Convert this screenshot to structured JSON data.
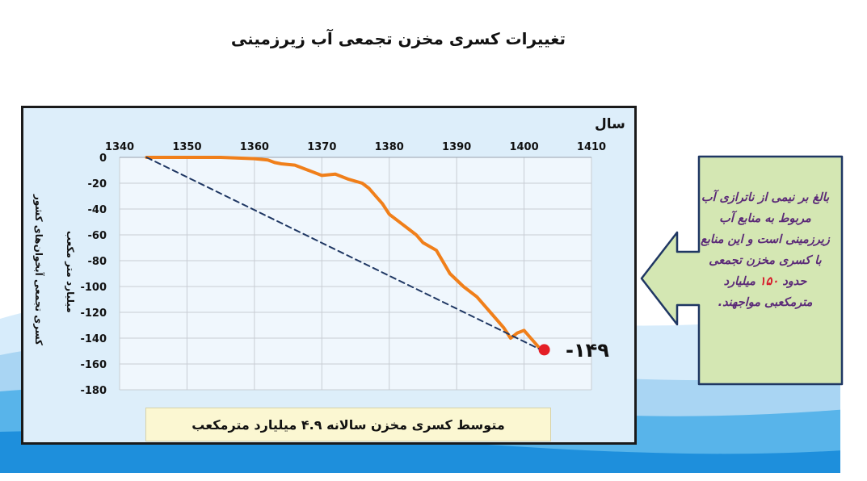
{
  "title": "تغییرات کسری مخزن تجمعی آب زیرزمینی",
  "chart_data": {
    "type": "line",
    "xlabel": "سال",
    "ylabel": "کسری تجمعی آبخوان‌های کشور",
    "ylabel_unit": "میلیارد متر مکعب",
    "x_axis_position": "top",
    "xlim": [
      1340,
      1410
    ],
    "ylim": [
      -180,
      0
    ],
    "x_ticks": [
      "1340",
      "1350",
      "1360",
      "1370",
      "1380",
      "1390",
      "1400",
      "1410"
    ],
    "y_ticks": [
      "0",
      "-20",
      "-40",
      "-60",
      "-80",
      "-100",
      "-120",
      "-140",
      "-160",
      "-180"
    ],
    "grid": true,
    "series": [
      {
        "style": "solid",
        "color": "#f07f1a",
        "x": [
          1344,
          1350,
          1355,
          1360,
          1362,
          1363,
          1364,
          1366,
          1368,
          1370,
          1372,
          1374,
          1376,
          1377,
          1378,
          1379,
          1380,
          1382,
          1384,
          1385,
          1387,
          1389,
          1391,
          1393,
          1395,
          1396,
          1397,
          1398,
          1399,
          1400,
          1401,
          1402,
          1402.5
        ],
        "y": [
          0,
          0,
          0,
          -1,
          -2,
          -4,
          -5,
          -6,
          -10,
          -14,
          -13,
          -17,
          -20,
          -24,
          -30,
          -36,
          -44,
          -52,
          -60,
          -66,
          -72,
          -90,
          -100,
          -108,
          -120,
          -126,
          -132,
          -140,
          -136,
          -134,
          -140,
          -146,
          -149
        ]
      },
      {
        "style": "dashed",
        "color": "#1f3763",
        "x": [
          1344,
          1402.5
        ],
        "y": [
          0,
          -149
        ]
      }
    ],
    "end_point": {
      "x": 1403,
      "y": -149,
      "label": "-۱۴۹"
    }
  },
  "average_box": "متوسط کسری مخزن سالانه ۴.۹ میلیارد مترمکعب",
  "callout": {
    "text_before": "بالغ بر نیمی از ناترازی آب مربوط به منابع آب زیرزمینی است و این منابع با کسری مخزن تجمعی حدود ",
    "highlight": "۱۵۰",
    "text_after": " میلیارد مترمکعبی مواجهند.",
    "fill_color": "#d4e7b3",
    "border_color": "#1f3763"
  }
}
